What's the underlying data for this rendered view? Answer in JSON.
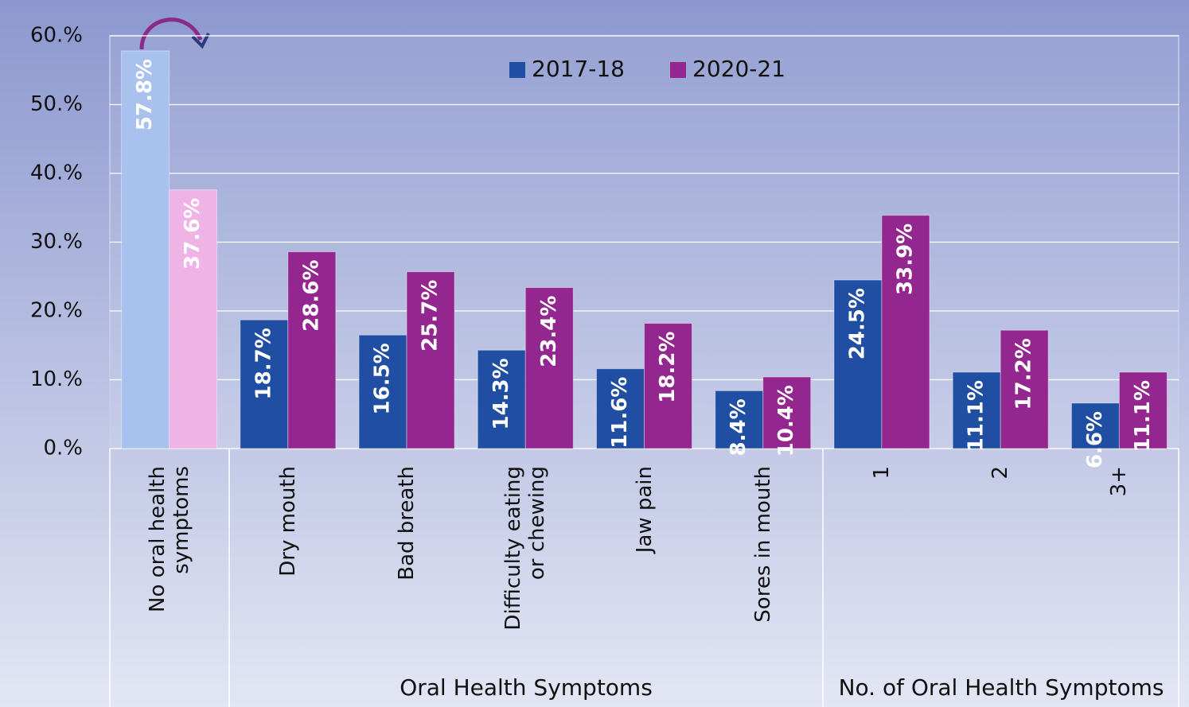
{
  "chart_data": {
    "type": "bar",
    "categories": [
      "No oral health symptoms",
      "Dry mouth",
      "Bad breath",
      "Difficulty eating or chewing",
      "Jaw pain",
      "Sores in mouth",
      "1",
      "2",
      "3+"
    ],
    "group_labels": [
      "Oral Health Symptoms",
      "No. of Oral Health Symptoms"
    ],
    "series": [
      {
        "name": "2017-18",
        "color": "#1f4ea3",
        "values": [
          57.8,
          18.7,
          16.5,
          14.3,
          11.6,
          8.4,
          24.5,
          11.1,
          6.6
        ],
        "value_labels": [
          "57.8%",
          "18.7%",
          "16.5%",
          "14.3%",
          "11.6%",
          "8.4%",
          "24.5%",
          "11.1%",
          "6.6%"
        ]
      },
      {
        "name": "2020-21",
        "color": "#93278f",
        "values": [
          37.6,
          28.6,
          25.7,
          23.4,
          18.2,
          10.4,
          33.9,
          17.2,
          11.1
        ],
        "value_labels": [
          "37.6%",
          "28.6%",
          "25.7%",
          "23.4%",
          "18.2%",
          "10.4%",
          "33.9%",
          "17.2%",
          "11.1%"
        ]
      }
    ],
    "ylim": [
      0,
      60
    ],
    "yticks": [
      {
        "value": 0,
        "label": "0.%"
      },
      {
        "value": 10,
        "label": "10.%"
      },
      {
        "value": 20,
        "label": "20.%"
      },
      {
        "value": 30,
        "label": "30.%"
      },
      {
        "value": 40,
        "label": "40.%"
      },
      {
        "value": 50,
        "label": "50.%"
      },
      {
        "value": 60,
        "label": "60.%"
      }
    ],
    "grid": true,
    "legend": "top"
  }
}
